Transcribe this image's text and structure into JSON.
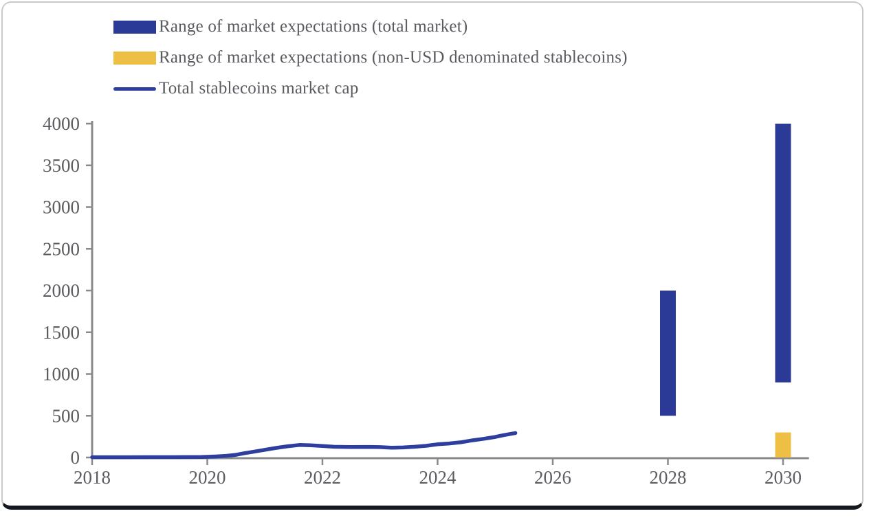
{
  "legend": {
    "items": [
      {
        "label": "Range of market expectations (total market)",
        "swatch": "rect",
        "color": "#2b3a96"
      },
      {
        "label": "Range of market expectations (non-USD denominated stablecoins)",
        "swatch": "rect",
        "color": "#edbf44"
      },
      {
        "label": "Total stablecoins market cap",
        "swatch": "line",
        "color": "#2e3e9e"
      }
    ]
  },
  "colors": {
    "bar_blue": "#2b3a96",
    "bar_yellow": "#edbf44",
    "line_blue": "#2e3e9e",
    "axis": "#8a8a8a",
    "tick_text": "#5c5d61"
  },
  "chart_data": {
    "type": "line+bar-ranges",
    "title": "",
    "xlabel": "",
    "ylabel": "",
    "ylim": [
      0,
      4000
    ],
    "xlim": [
      2017.95,
      2030.45
    ],
    "grid": false,
    "legend_position": "top-left",
    "y_ticks": [
      0,
      500,
      1000,
      1500,
      2000,
      2500,
      3000,
      3500,
      4000
    ],
    "x_ticks": [
      2018,
      2020,
      2022,
      2024,
      2026,
      2028,
      2030
    ],
    "series": [
      {
        "name": "Total stablecoins market cap",
        "type": "line",
        "color": "#2e3e9e",
        "points": [
          [
            2018.0,
            3
          ],
          [
            2018.3,
            3
          ],
          [
            2018.6,
            3
          ],
          [
            2019.0,
            4
          ],
          [
            2019.3,
            4
          ],
          [
            2019.6,
            5
          ],
          [
            2019.9,
            6
          ],
          [
            2020.0,
            8
          ],
          [
            2020.15,
            12
          ],
          [
            2020.3,
            18
          ],
          [
            2020.5,
            32
          ],
          [
            2020.65,
            52
          ],
          [
            2020.8,
            68
          ],
          [
            2021.0,
            92
          ],
          [
            2021.2,
            115
          ],
          [
            2021.4,
            135
          ],
          [
            2021.6,
            150
          ],
          [
            2021.8,
            146
          ],
          [
            2022.0,
            138
          ],
          [
            2022.2,
            128
          ],
          [
            2022.5,
            125
          ],
          [
            2022.8,
            127
          ],
          [
            2023.0,
            124
          ],
          [
            2023.2,
            117
          ],
          [
            2023.4,
            120
          ],
          [
            2023.6,
            128
          ],
          [
            2023.8,
            140
          ],
          [
            2024.0,
            158
          ],
          [
            2024.2,
            168
          ],
          [
            2024.4,
            182
          ],
          [
            2024.6,
            205
          ],
          [
            2024.8,
            224
          ],
          [
            2025.0,
            246
          ],
          [
            2025.15,
            268
          ],
          [
            2025.35,
            293
          ]
        ]
      },
      {
        "name": "Range of market expectations (total market)",
        "type": "range-bar",
        "color": "#2b3a96",
        "bars": [
          {
            "x": 2028,
            "low": 500,
            "high": 2000
          },
          {
            "x": 2030,
            "low": 900,
            "high": 4000
          }
        ]
      },
      {
        "name": "Range of market expectations (non-USD denominated stablecoins)",
        "type": "range-bar",
        "color": "#edbf44",
        "bars": [
          {
            "x": 2030,
            "low": 0,
            "high": 300
          }
        ]
      }
    ]
  }
}
